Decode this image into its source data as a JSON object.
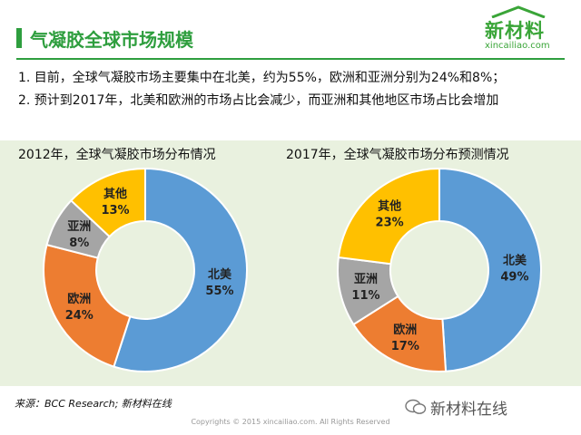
{
  "header": {
    "title": "气凝胶全球市场规模",
    "logo_text": "新材料",
    "logo_url": "xincailiao.com"
  },
  "bullets": [
    "1.  目前，全球气凝胶市场主要集中在北美，约为55%，欧洲和亚洲分别为24%和8%；",
    "2.  预计到2017年，北美和欧洲的市场占比会减少，而亚洲和其他地区市场占比会增加"
  ],
  "chart_data": [
    {
      "type": "pie",
      "title": "2012年，全球气凝胶市场分布情况",
      "categories": [
        "北美",
        "欧洲",
        "亚洲",
        "其他"
      ],
      "values": [
        55,
        24,
        8,
        13
      ],
      "labels": [
        "55%",
        "24%",
        "8%",
        "13%"
      ],
      "colors": [
        "#5b9bd5",
        "#ed7d31",
        "#a5a5a5",
        "#ffc000"
      ],
      "donut": true
    },
    {
      "type": "pie",
      "title": "2017年，全球气凝胶市场分布预测情况",
      "categories": [
        "北美",
        "欧洲",
        "亚洲",
        "其他"
      ],
      "values": [
        49,
        17,
        11,
        23
      ],
      "labels": [
        "49%",
        "17%",
        "11%",
        "23%"
      ],
      "colors": [
        "#5b9bd5",
        "#ed7d31",
        "#a5a5a5",
        "#ffc000"
      ],
      "donut": true
    }
  ],
  "footer": {
    "source": "来源：BCC  Research; 新材料在线",
    "copyright": "Copyrights © 2015 xincailiao.com. All Rights Reserved",
    "wechat": "新材料在线"
  },
  "colors": {
    "brand_green": "#2e9e3e",
    "panel_bg": "#e9f1df"
  }
}
